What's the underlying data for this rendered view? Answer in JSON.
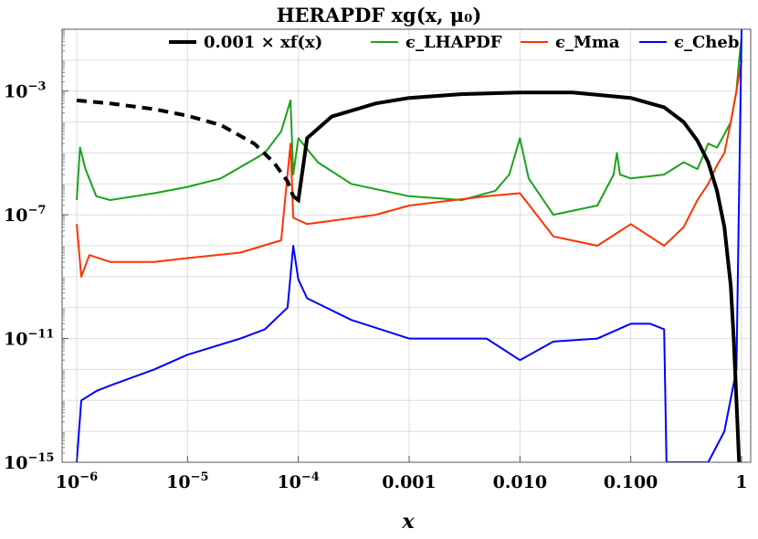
{
  "chart_data": {
    "type": "line",
    "title": "HERAPDF xg(x, μ₀)",
    "xlabel": "x",
    "ylabel": "",
    "x_scale": "log",
    "y_scale": "log",
    "xlim": [
      1e-06,
      1
    ],
    "ylim": [
      1e-15,
      0.1
    ],
    "grid": true,
    "legend_position": "top",
    "x_ticks": [
      {
        "value": 1e-06,
        "base": "10",
        "exp": "−6"
      },
      {
        "value": 1e-05,
        "base": "10",
        "exp": "−5"
      },
      {
        "value": 0.0001,
        "base": "10",
        "exp": "−4"
      },
      {
        "value": 0.001,
        "label": "0.001"
      },
      {
        "value": 0.01,
        "label": "0.010"
      },
      {
        "value": 0.1,
        "label": "0.100"
      },
      {
        "value": 1,
        "label": "1"
      }
    ],
    "y_ticks": [
      {
        "value": 0.001,
        "base": "10",
        "exp": "−3"
      },
      {
        "value": 1e-07,
        "base": "10",
        "exp": "−7"
      },
      {
        "value": 1e-11,
        "base": "10",
        "exp": "−11"
      },
      {
        "value": 1e-15,
        "base": "10",
        "exp": "−15"
      }
    ],
    "series": [
      {
        "name": "0.001 × xf(x)",
        "color": "#000000",
        "style": "solid, dashed where x < 9e-5",
        "x": [
          1e-06,
          2e-06,
          5e-06,
          1e-05,
          2e-05,
          4e-05,
          6e-05,
          8e-05,
          9e-05,
          0.0001,
          0.00012,
          0.0002,
          0.0005,
          0.001,
          0.003,
          0.01,
          0.03,
          0.1,
          0.2,
          0.3,
          0.4,
          0.5,
          0.6,
          0.7,
          0.8,
          0.85,
          0.9,
          0.95
        ],
        "y": [
          0.0005,
          0.0004,
          0.00026,
          0.00016,
          8e-05,
          2e-05,
          5e-06,
          1.2e-06,
          4e-07,
          3e-07,
          3e-05,
          0.00015,
          0.0004,
          0.0006,
          0.0008,
          0.0009,
          0.0009,
          0.0006,
          0.0003,
          0.0001,
          2.5e-05,
          5e-06,
          6e-07,
          4e-08,
          5e-10,
          1e-11,
          1e-13,
          1e-15
        ]
      },
      {
        "name": "ϵ_LHAPDF",
        "color": "#1aa31a",
        "x": [
          1e-06,
          1.07e-06,
          1.2e-06,
          1.5e-06,
          2e-06,
          5e-06,
          1e-05,
          2e-05,
          5e-05,
          7e-05,
          8.5e-05,
          9e-05,
          0.0001,
          0.00015,
          0.0003,
          0.001,
          0.003,
          0.006,
          0.008,
          0.01,
          0.012,
          0.02,
          0.05,
          0.07,
          0.075,
          0.08,
          0.1,
          0.2,
          0.3,
          0.4,
          0.5,
          0.6,
          0.7,
          0.8,
          0.9,
          0.95,
          1
        ],
        "y": [
          3e-07,
          1.5e-05,
          3e-06,
          4e-07,
          3e-07,
          5e-07,
          8e-07,
          1.5e-06,
          1e-05,
          5e-05,
          0.0005,
          2e-06,
          3e-05,
          5e-06,
          1e-06,
          4e-07,
          3e-07,
          6e-07,
          2e-06,
          3e-05,
          1.5e-06,
          1e-07,
          2e-07,
          2e-06,
          1e-05,
          2e-06,
          1.5e-06,
          2e-06,
          5e-06,
          3e-06,
          2e-05,
          1.5e-05,
          4e-05,
          0.0001,
          0.001,
          0.01,
          0.05
        ]
      },
      {
        "name": "ϵ_Mma",
        "color": "#ff3300",
        "x": [
          1e-06,
          1.1e-06,
          1.3e-06,
          2e-06,
          5e-06,
          1e-05,
          3e-05,
          7e-05,
          8.5e-05,
          9e-05,
          0.00012,
          0.0005,
          0.001,
          0.005,
          0.01,
          0.02,
          0.05,
          0.1,
          0.2,
          0.3,
          0.4,
          0.5,
          0.6,
          0.7,
          0.8,
          0.9,
          1
        ],
        "y": [
          5e-08,
          1e-09,
          5e-09,
          3e-09,
          3e-09,
          4e-09,
          6e-09,
          1.5e-08,
          2e-05,
          8e-08,
          5e-08,
          1e-07,
          2e-07,
          4e-07,
          5e-07,
          2e-08,
          1e-08,
          5e-08,
          1e-08,
          4e-08,
          3e-07,
          1e-06,
          4e-06,
          1e-05,
          0.0001,
          0.001,
          0.01
        ]
      },
      {
        "name": "ϵ_Cheb",
        "color": "#0000ff",
        "x": [
          1e-06,
          1.1e-06,
          1.5e-06,
          2e-06,
          5e-06,
          1e-05,
          3e-05,
          5e-05,
          8e-05,
          9e-05,
          0.0001,
          0.00012,
          0.0003,
          0.001,
          0.005,
          0.01,
          0.02,
          0.05,
          0.1,
          0.15,
          0.2,
          0.21,
          0.3,
          0.5,
          0.7,
          0.9,
          1
        ],
        "y": [
          1e-15,
          1e-13,
          2e-13,
          3e-13,
          1e-12,
          3e-12,
          1e-11,
          2e-11,
          1e-10,
          1e-08,
          8e-10,
          2e-10,
          4e-11,
          1e-11,
          1e-11,
          2e-12,
          8e-12,
          1e-11,
          3e-11,
          3e-11,
          2e-11,
          1e-15,
          1e-15,
          1e-15,
          1e-14,
          1e-12,
          0.1
        ]
      }
    ]
  }
}
